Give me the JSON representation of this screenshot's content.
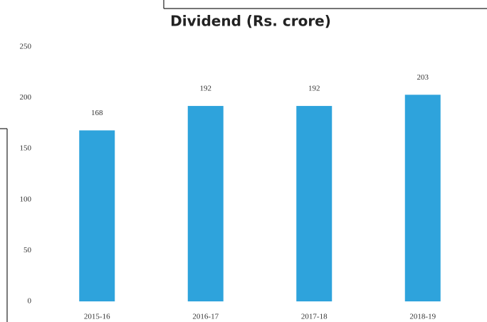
{
  "chart_data": {
    "type": "bar",
    "title": "Dividend (Rs. crore)",
    "categories": [
      "2015-16",
      "2016-17",
      "2017-18",
      "2018-19"
    ],
    "values": [
      168,
      192,
      192,
      203
    ],
    "color": "#2ea3dc",
    "ylim": [
      0,
      250
    ],
    "yticks": [
      0,
      50,
      100,
      150,
      200,
      250
    ],
    "grid": false
  }
}
